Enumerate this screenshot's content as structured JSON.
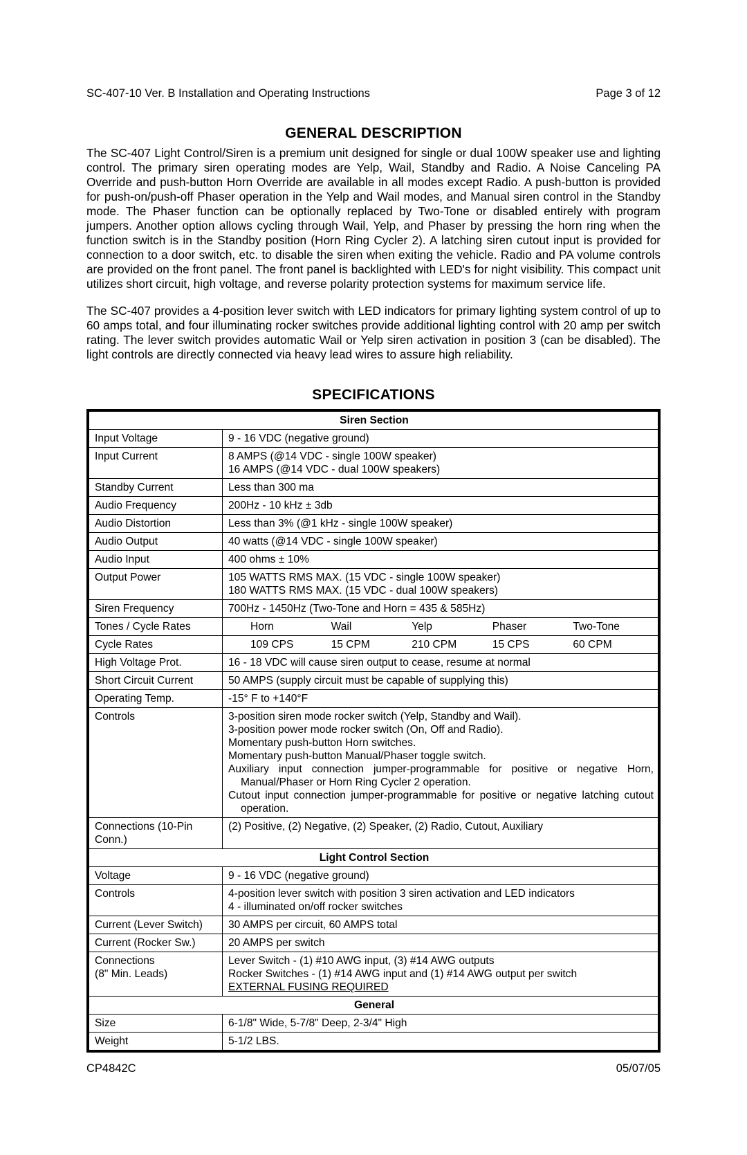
{
  "header": {
    "left": "SC-407-10  Ver. B Installation and Operating Instructions",
    "right": "Page 3 of 12"
  },
  "title1": "GENERAL DESCRIPTION",
  "para1": "The SC-407 Light Control/Siren is a premium unit designed for single or dual 100W speaker use and lighting control.  The primary siren operating modes are Yelp, Wail, Standby and Radio.  A Noise Canceling PA Override and push-button Horn Override are available in all modes except Radio.  A push-button is provided for push-on/push-off Phaser operation in the Yelp and Wail modes, and Manual siren control in the Standby mode.  The Phaser function can be optionally replaced by Two-Tone or disabled entirely with program jumpers.  Another option allows cycling through Wail, Yelp, and Phaser by pressing the horn ring when the function switch is in the Standby position (Horn Ring Cycler 2).  A latching siren cutout input is provided for connection to a door switch, etc. to disable the siren when exiting the vehicle.  Radio and PA volume controls are provided on the front panel.  The front panel is backlighted with LED's for night visibility. This compact unit utilizes short circuit, high voltage, and reverse polarity protection systems for maximum service life.",
  "para2": "The SC-407 provides a 4-position lever switch with LED indicators for primary lighting system control of up to 60 amps total, and four illuminating rocker switches provide additional lighting control with 20 amp per switch rating.  The lever switch provides automatic Wail or Yelp siren activation in position 3 (can be disabled).  The light controls are directly connected via heavy lead wires to assure high reliability.",
  "title2": "SPECIFICATIONS",
  "siren": {
    "header": "Siren Section",
    "input_voltage": {
      "l": "Input Voltage",
      "v": "9 - 16 VDC (negative ground)"
    },
    "input_current": {
      "l": "Input Current",
      "v": "8 AMPS (@14 VDC - single 100W speaker)\n16 AMPS (@14 VDC - dual 100W speakers)"
    },
    "standby_current": {
      "l": "Standby Current",
      "v": "Less than 300 ma"
    },
    "audio_freq": {
      "l": "Audio Frequency",
      "v": "200Hz - 10 kHz ± 3db"
    },
    "audio_dist": {
      "l": "Audio Distortion",
      "v": "Less than 3% (@1 kHz - single 100W speaker)"
    },
    "audio_out": {
      "l": "Audio Output",
      "v": "40 watts (@14 VDC - single 100W speaker)"
    },
    "audio_in": {
      "l": "Audio Input",
      "v": "400 ohms ± 10%"
    },
    "output_power": {
      "l": "Output Power",
      "v": "105 WATTS RMS MAX. (15 VDC - single 100W speaker)\n180 WATTS RMS MAX. (15 VDC - dual 100W speakers)"
    },
    "siren_freq": {
      "l": "Siren Frequency",
      "v": "700Hz - 1450Hz (Two-Tone and Horn = 435 & 585Hz)"
    },
    "tones": {
      "l": "Tones / Cycle Rates",
      "cols": [
        "Horn",
        "Wail",
        "Yelp",
        "Phaser",
        "Two-Tone"
      ]
    },
    "cycle_rates": {
      "l": "Cycle Rates",
      "cols": [
        "109 CPS",
        "15 CPM",
        "210 CPM",
        "15 CPS",
        "60 CPM"
      ]
    },
    "hv_prot": {
      "l": "High Voltage Prot.",
      "v": "16 - 18 VDC will cause siren output to cease, resume at normal"
    },
    "short_circuit": {
      "l": "Short Circuit Current",
      "v": "50 AMPS (supply circuit must be capable of supplying this)"
    },
    "op_temp": {
      "l": "Operating Temp.",
      "v": "-15° F to +140°F"
    },
    "controls": {
      "l": "Controls",
      "lines": [
        "3-position siren mode rocker switch (Yelp, Standby and Wail).",
        "3-position power mode rocker switch (On, Off and Radio).",
        "Momentary push-button Horn switches.",
        "Momentary push-button Manual/Phaser toggle switch.",
        "Auxiliary input connection jumper-programmable for positive or negative Horn, Manual/Phaser or Horn Ring Cycler 2  operation.",
        "Cutout input connection jumper-programmable for positive or negative latching cutout operation."
      ]
    },
    "conn": {
      "l": "Connections (10-Pin Conn.)",
      "v": "(2) Positive, (2) Negative, (2) Speaker, (2) Radio, Cutout, Auxiliary"
    }
  },
  "light": {
    "header": "Light Control Section",
    "voltage": {
      "l": "Voltage",
      "v": "9 - 16 VDC (negative ground)"
    },
    "controls": {
      "l": "Controls",
      "v": "4-position lever switch with position 3 siren activation and LED indicators\n4 - illuminated on/off rocker switches"
    },
    "cur_lever": {
      "l": "Current (Lever Switch)",
      "v": "30 AMPS per circuit, 60 AMPS total"
    },
    "cur_rocker": {
      "l": "Current (Rocker Sw.)",
      "v": "20 AMPS per switch"
    },
    "conn": {
      "l": "Connections\n(8\" Min. Leads)",
      "v1": "Lever Switch - (1) #10 AWG input, (3) #14 AWG outputs",
      "v2": "Rocker Switches - (1) #14 AWG input and (1) #14 AWG output per switch",
      "v3": "EXTERNAL FUSING REQUIRED"
    }
  },
  "general": {
    "header": "General",
    "size": {
      "l": "Size",
      "v": "6-1/8\" Wide, 5-7/8\" Deep, 2-3/4\" High"
    },
    "weight": {
      "l": "Weight",
      "v": "5-1/2 LBS."
    }
  },
  "footer": {
    "left": "CP4842C",
    "right": "05/07/05"
  }
}
